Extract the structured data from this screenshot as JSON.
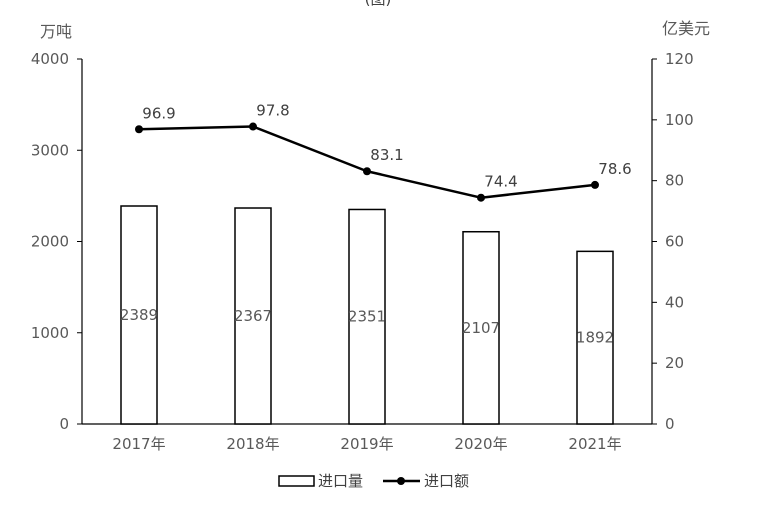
{
  "chart_data": {
    "type": "bar",
    "title_fragment": "(图)",
    "categories": [
      "2017年",
      "2018年",
      "2019年",
      "2020年",
      "2021年"
    ],
    "series": [
      {
        "name": "进口量",
        "type": "bar",
        "axis": "left",
        "values": [
          2389,
          2367,
          2351,
          2107,
          1892
        ]
      },
      {
        "name": "进口额",
        "type": "line",
        "axis": "right",
        "values": [
          96.9,
          97.8,
          83.1,
          74.4,
          78.6
        ]
      }
    ],
    "ylabel_left": "万吨",
    "ylabel_right": "亿美元",
    "ylim_left": [
      0,
      4000
    ],
    "ylim_right": [
      0,
      120
    ],
    "yticks_left": [
      0,
      1000,
      2000,
      3000,
      4000
    ],
    "yticks_right": [
      0,
      20,
      40,
      60,
      80,
      100,
      120
    ],
    "grid": false,
    "legend_position": "bottom"
  },
  "colors": {
    "bar_fill": "#ffffff",
    "bar_stroke": "#000000",
    "line": "#000000",
    "axis": "#000000",
    "text": "#595959"
  }
}
